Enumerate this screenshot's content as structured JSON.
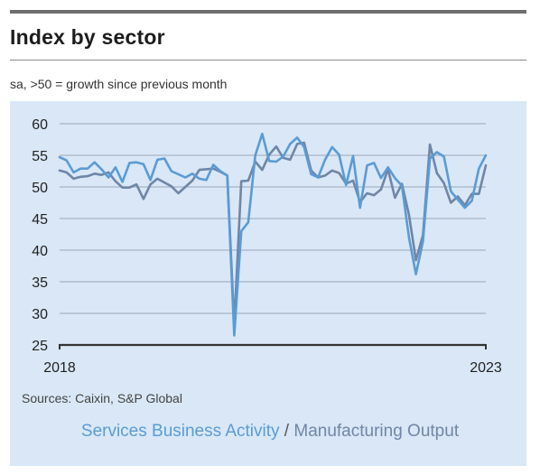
{
  "header": {
    "title": "Index by sector",
    "subtitle": "sa, >50 = growth since previous month"
  },
  "footer": {
    "source": "Sources: Caixin, S&P Global",
    "legend_separator": " / "
  },
  "chart_data": {
    "type": "line",
    "title": "Index by sector",
    "subtitle": "sa, >50 = growth since previous month",
    "ylim": [
      25,
      60
    ],
    "yticks": [
      25,
      30,
      35,
      40,
      45,
      50,
      55,
      60
    ],
    "xlim": [
      2018.0,
      2023.0
    ],
    "xtick_labels": [
      {
        "value": 2018,
        "label": "2018"
      },
      {
        "value": 2023,
        "label": "2023"
      }
    ],
    "grid": "horizontal",
    "legend": "bottom-center",
    "series": [
      {
        "name": "Services Business Activity",
        "color": "#5a9bd5",
        "values": [
          54.7,
          54.2,
          52.3,
          52.9,
          52.9,
          53.9,
          52.8,
          51.5,
          53.1,
          50.8,
          53.8,
          53.9,
          53.6,
          51.1,
          54.3,
          54.5,
          52.5,
          52.0,
          51.5,
          52.1,
          51.3,
          51.1,
          53.5,
          52.5,
          51.8,
          26.5,
          43.0,
          44.4,
          55.0,
          58.4,
          54.1,
          54.0,
          54.8,
          56.8,
          57.8,
          56.3,
          52.0,
          51.5,
          54.3,
          56.3,
          55.1,
          50.3,
          54.9,
          46.7,
          53.4,
          53.8,
          51.4,
          53.1,
          51.4,
          50.2,
          42.0,
          36.2,
          41.4,
          54.5,
          55.5,
          54.8,
          49.3,
          48.0,
          46.7,
          47.8,
          52.9,
          55.0
        ]
      },
      {
        "name": "Manufacturing Output",
        "color": "#6f86a6",
        "values": [
          52.6,
          52.3,
          51.3,
          51.6,
          51.7,
          52.1,
          51.9,
          52.3,
          50.9,
          49.9,
          49.9,
          50.4,
          48.1,
          50.4,
          51.3,
          50.7,
          50.1,
          49.0,
          50.0,
          51.0,
          52.7,
          52.8,
          52.9,
          52.4,
          51.8,
          28.2,
          50.9,
          51.0,
          54.0,
          52.7,
          55.1,
          56.4,
          54.6,
          54.3,
          56.8,
          57.0,
          52.6,
          51.5,
          51.8,
          52.6,
          52.2,
          50.5,
          51.0,
          47.6,
          49.0,
          48.7,
          49.6,
          52.8,
          48.3,
          50.5,
          45.6,
          38.4,
          42.4,
          56.7,
          52.2,
          50.6,
          47.5,
          48.5,
          47.1,
          48.9,
          48.9,
          53.4
        ]
      }
    ]
  }
}
